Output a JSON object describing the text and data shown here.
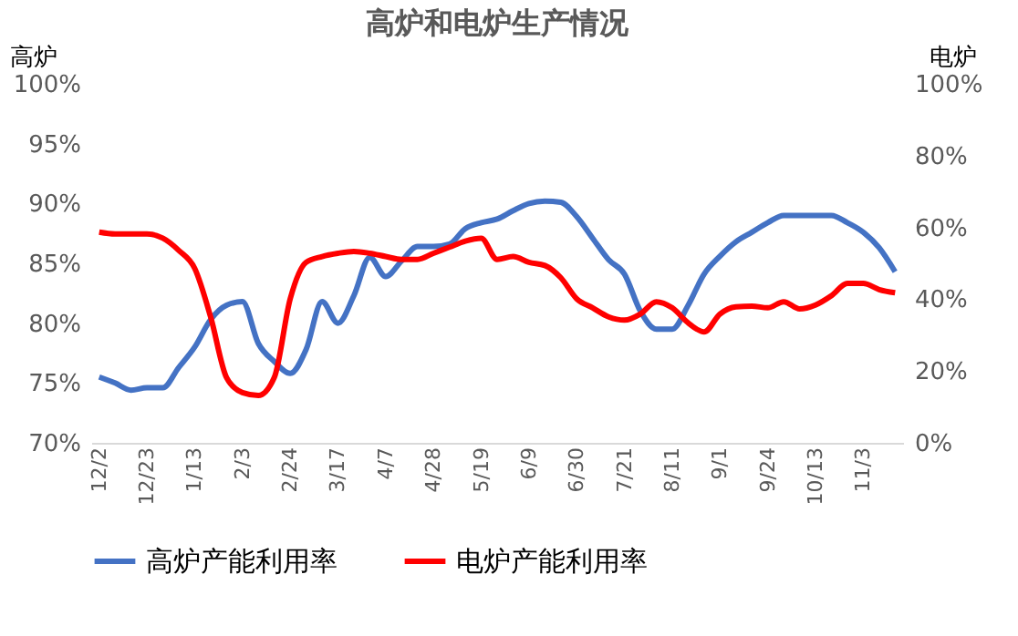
{
  "chart_data": {
    "type": "line",
    "title": "高炉和电炉生产情况",
    "ylabel": "高炉",
    "y2label": "电炉",
    "categories": [
      "12/2",
      null,
      null,
      "12/23",
      null,
      null,
      "1/13",
      null,
      null,
      "2/3",
      null,
      null,
      "2/24",
      null,
      null,
      "3/17",
      null,
      null,
      "4/7",
      null,
      null,
      "4/28",
      null,
      null,
      "5/19",
      null,
      null,
      "6/9",
      null,
      null,
      "6/30",
      null,
      null,
      "7/21",
      null,
      null,
      "8/11",
      null,
      null,
      "9/1",
      null,
      null,
      "9/24",
      null,
      null,
      "10/13",
      null,
      null,
      "11/3",
      null,
      null
    ],
    "series": [
      {
        "name": "高炉产能利用率",
        "color": "#4472c4",
        "values": [
          75.5,
          75.0,
          74.4,
          74.6,
          74.6,
          76.3,
          78.0,
          80.3,
          81.5,
          81.8,
          78.3,
          76.8,
          75.8,
          77.8,
          81.8,
          80.0,
          82.3,
          85.5,
          83.9,
          85.2,
          86.4,
          86.4,
          86.6,
          87.9,
          88.4,
          88.7,
          89.4,
          90.0,
          90.2,
          90.1,
          88.9,
          87.1,
          85.3,
          84.1,
          81.0,
          79.5,
          79.5,
          81.5,
          84.1,
          85.6,
          86.8,
          87.6,
          88.4,
          89.0,
          89.0,
          89.0,
          89.0,
          88.4,
          87.6,
          86.3,
          84.3
        ]
      },
      {
        "name": "电炉产能利用率",
        "color": "#ff0000",
        "axis": "y2",
        "values": [
          58.7,
          58.2,
          58.2,
          58.2,
          57.0,
          53.6,
          48.6,
          35.1,
          18.2,
          14.0,
          13.2,
          18.2,
          40.1,
          50.3,
          51.9,
          52.8,
          53.3,
          52.8,
          51.9,
          51.1,
          51.1,
          52.8,
          54.5,
          56.2,
          57.0,
          51.1,
          51.9,
          50.3,
          49.4,
          46.0,
          40.1,
          37.6,
          35.1,
          34.2,
          35.9,
          39.3,
          37.6,
          33.4,
          30.9,
          35.9,
          37.9,
          38.1,
          37.6,
          39.3,
          37.3,
          38.4,
          41.0,
          44.4,
          44.4,
          42.7,
          41.8
        ]
      }
    ],
    "ylim": [
      70,
      100
    ],
    "yticks": [
      {
        "value": 70,
        "label": "70%"
      },
      {
        "value": 75,
        "label": "75%"
      },
      {
        "value": 80,
        "label": "80%"
      },
      {
        "value": 85,
        "label": "85%"
      },
      {
        "value": 90,
        "label": "90%"
      },
      {
        "value": 95,
        "label": "95%"
      },
      {
        "value": 100,
        "label": "100%"
      }
    ],
    "y2lim": [
      0,
      100
    ],
    "y2ticks": [
      {
        "value": 0,
        "label": "0%"
      },
      {
        "value": 20,
        "label": "20%"
      },
      {
        "value": 40,
        "label": "40%"
      },
      {
        "value": 60,
        "label": "60%"
      },
      {
        "value": 80,
        "label": "80%"
      },
      {
        "value": 100,
        "label": "100%"
      }
    ],
    "grid": false,
    "legend": "bottom",
    "marker": "none",
    "line_style": "solid"
  }
}
